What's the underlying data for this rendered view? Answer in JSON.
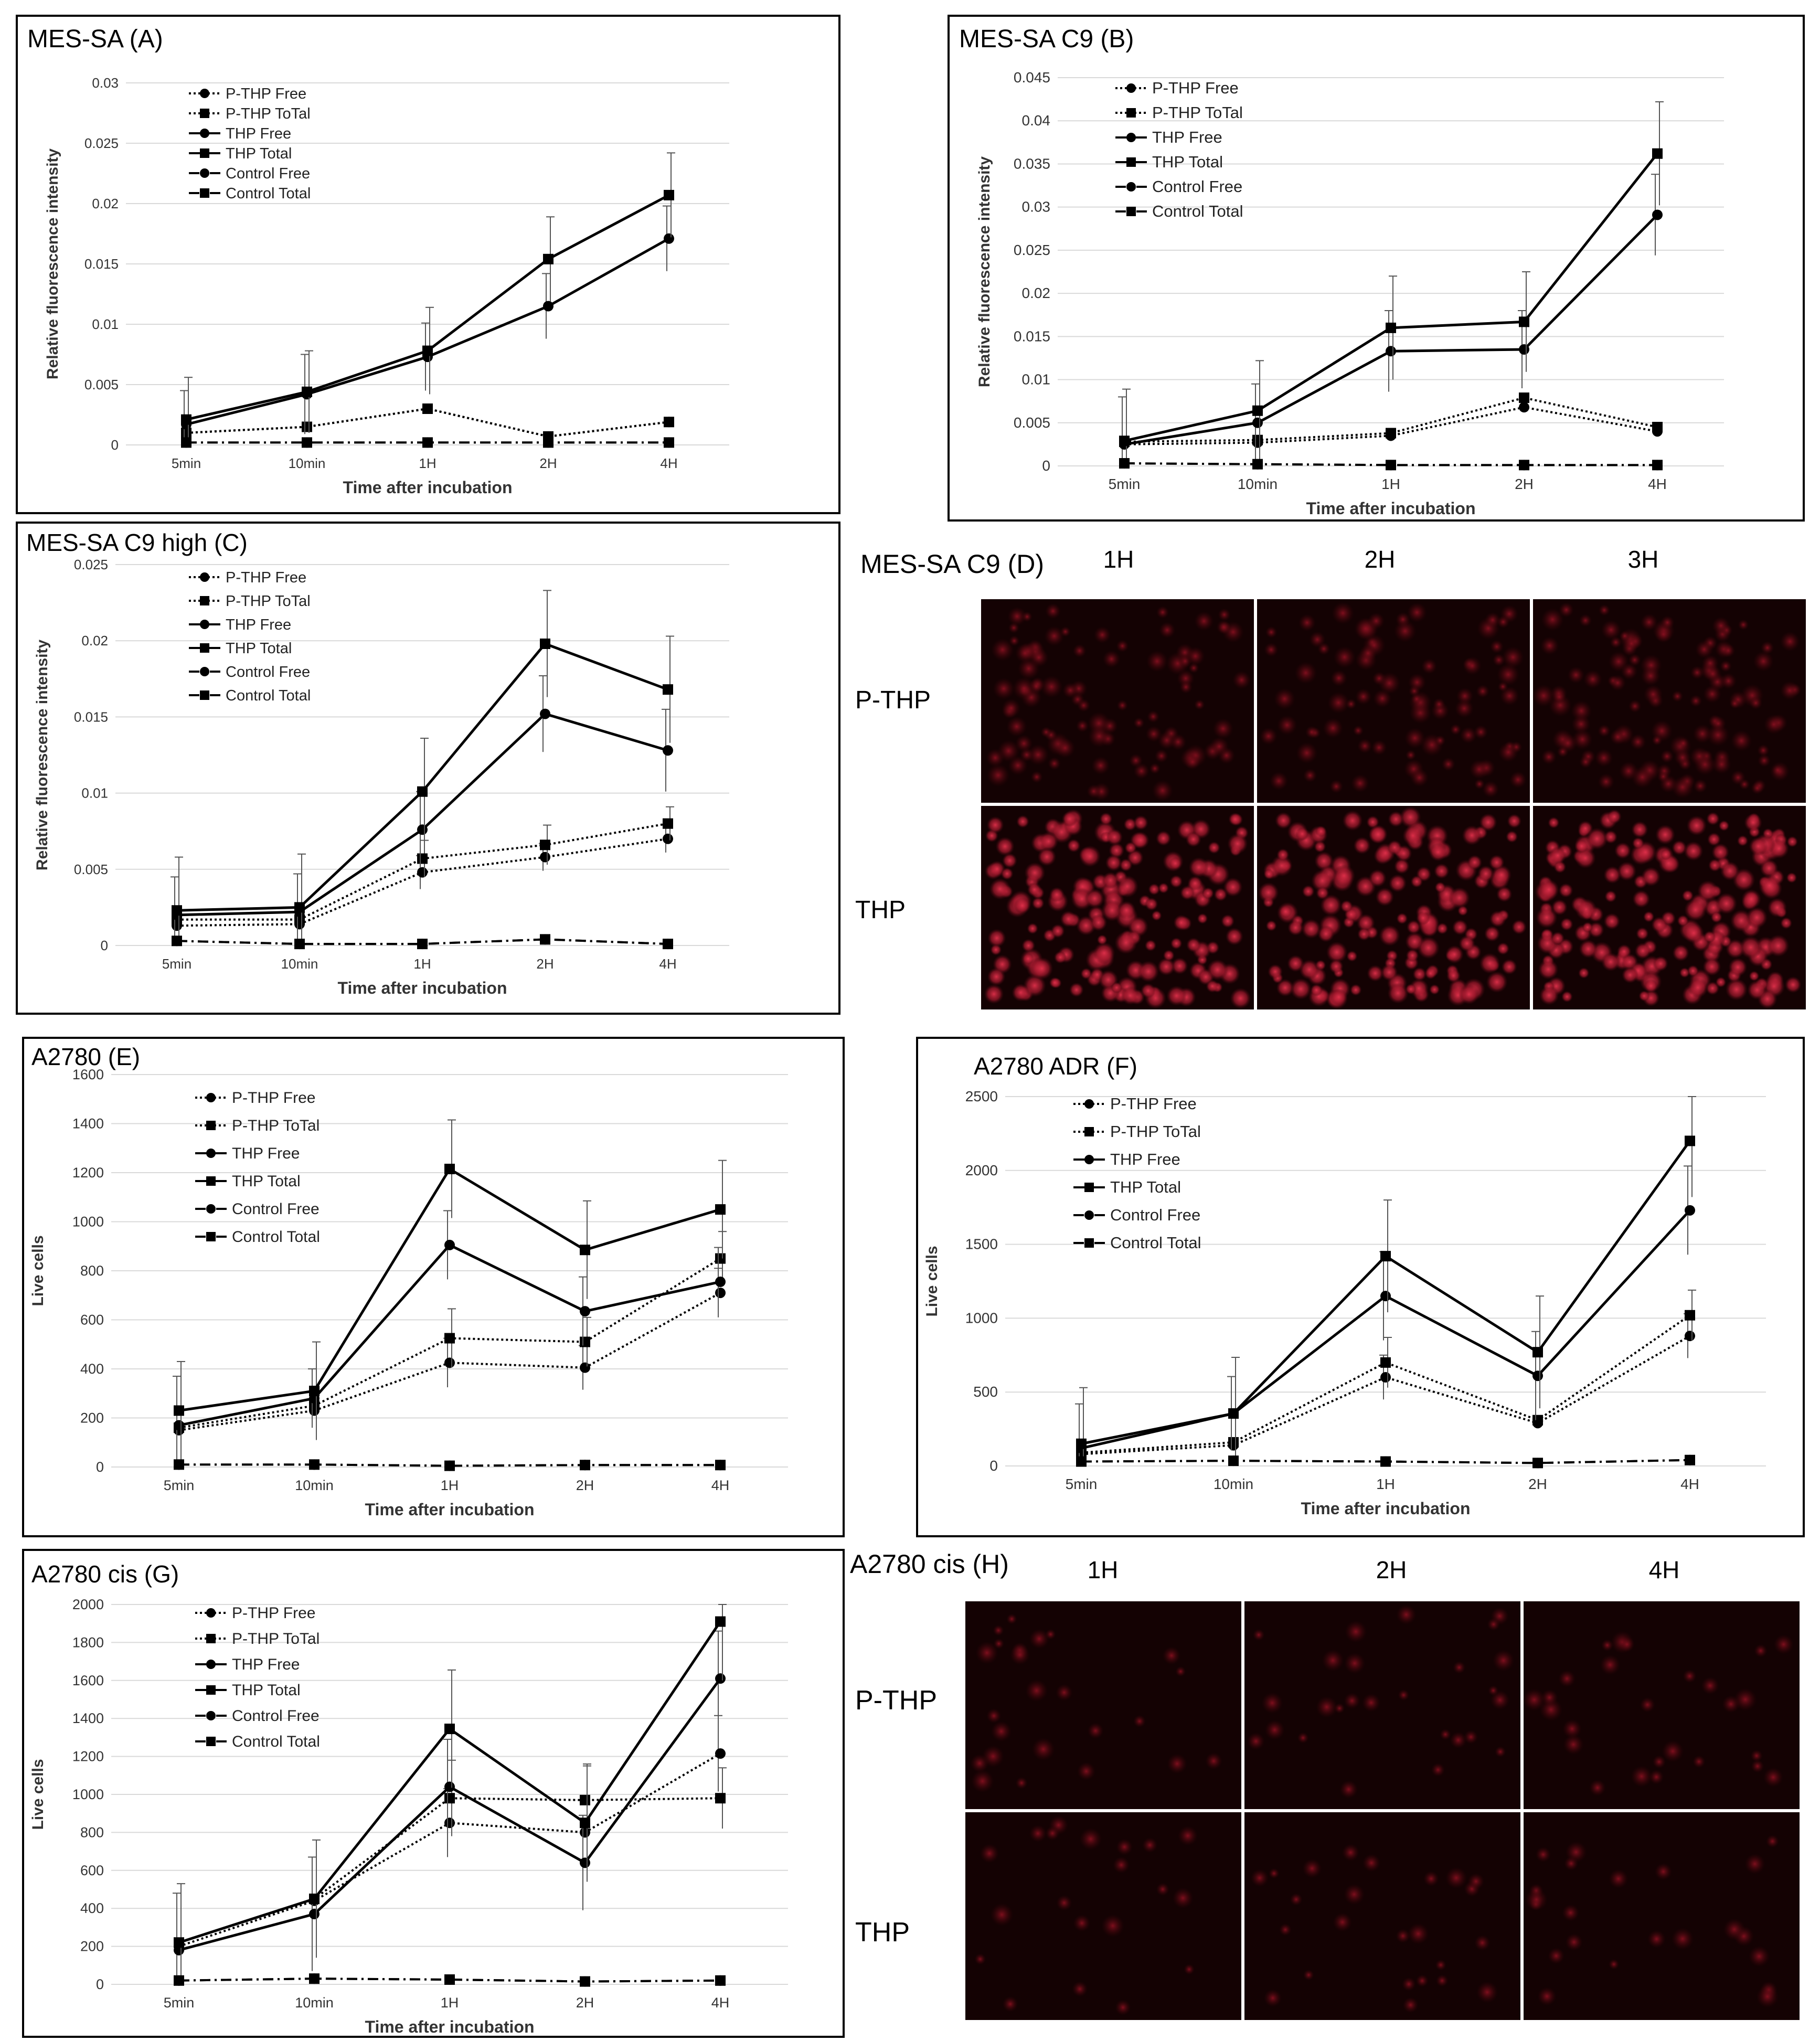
{
  "chart_data": [
    {
      "id": "A",
      "type": "line",
      "title": "MES-SA (A)",
      "categories": [
        "5min",
        "10min",
        "1H",
        "2H",
        "4H"
      ],
      "ylim": [
        0,
        0.03
      ],
      "yticks": [
        "0",
        "0.005",
        "0.01",
        "0.015",
        "0.02",
        "0.025",
        "0.03"
      ],
      "ylabel": "Relative fluorescence intensity",
      "xlabel": "Time after incubation",
      "series": [
        {
          "name": "P-THP Free",
          "values": [
            0.001,
            0.0015,
            0.003,
            0.0007,
            0.0019
          ],
          "errors": [
            0,
            0,
            0,
            0,
            0
          ],
          "style": "dotted",
          "marker": "circle"
        },
        {
          "name": "P-THP ToTal",
          "values": [
            0.001,
            0.0015,
            0.003,
            0.0007,
            0.0019
          ],
          "errors": [
            0,
            0,
            0,
            0,
            0
          ],
          "style": "dotted",
          "marker": "square"
        },
        {
          "name": "THP Free",
          "values": [
            0.0017,
            0.0042,
            0.0073,
            0.0115,
            0.0171
          ],
          "errors": [
            0.0028,
            0.0033,
            0.0028,
            0.0027,
            0.0027
          ],
          "style": "solid",
          "marker": "circle"
        },
        {
          "name": "THP Total",
          "values": [
            0.0021,
            0.0044,
            0.0078,
            0.0154,
            0.0207
          ],
          "errors": [
            0.0035,
            0.0034,
            0.0036,
            0.0035,
            0.0035
          ],
          "style": "solid",
          "marker": "square"
        },
        {
          "name": "Control Free",
          "values": [
            0.0002,
            0.0002,
            0.0002,
            0.0002,
            0.0002
          ],
          "errors": [
            0,
            0,
            0,
            0,
            0
          ],
          "style": "dashdot",
          "marker": "circle"
        },
        {
          "name": "Control Total",
          "values": [
            0.0002,
            0.0002,
            0.0002,
            0.0002,
            0.0002
          ],
          "errors": [
            0,
            0,
            0,
            0,
            0
          ],
          "style": "dashdot",
          "marker": "square"
        }
      ]
    },
    {
      "id": "B",
      "type": "line",
      "title": "MES-SA C9 (B)",
      "categories": [
        "5min",
        "10min",
        "1H",
        "2H",
        "4H"
      ],
      "ylim": [
        0,
        0.045
      ],
      "yticks": [
        "0",
        "0.005",
        "0.01",
        "0.015",
        "0.02",
        "0.025",
        "0.03",
        "0.035",
        "0.04",
        "0.045"
      ],
      "ylabel": "Relative fluorescence intensity",
      "xlabel": "Time after incubation",
      "series": [
        {
          "name": "P-THP Free",
          "values": [
            0.0025,
            0.0027,
            0.0035,
            0.0068,
            0.004
          ],
          "errors": [
            0,
            0,
            0,
            0,
            0
          ],
          "style": "dotted",
          "marker": "circle"
        },
        {
          "name": "P-THP ToTal",
          "values": [
            0.0028,
            0.003,
            0.0038,
            0.0079,
            0.0045
          ],
          "errors": [
            0,
            0,
            0,
            0,
            0
          ],
          "style": "dotted",
          "marker": "square"
        },
        {
          "name": "THP Free",
          "values": [
            0.0025,
            0.005,
            0.0133,
            0.0135,
            0.0291
          ],
          "errors": [
            0.0055,
            0.0045,
            0.0047,
            0.0045,
            0.0047
          ],
          "style": "solid",
          "marker": "circle"
        },
        {
          "name": "THP Total",
          "values": [
            0.0029,
            0.0064,
            0.016,
            0.0167,
            0.0362
          ],
          "errors": [
            0.006,
            0.0058,
            0.006,
            0.0058,
            0.006
          ],
          "style": "solid",
          "marker": "square"
        },
        {
          "name": "Control Free",
          "values": [
            0.0003,
            0.0002,
            0.0001,
            0.0001,
            0.0001
          ],
          "errors": [
            0,
            0,
            0,
            0,
            0
          ],
          "style": "dashdot",
          "marker": "circle"
        },
        {
          "name": "Control Total",
          "values": [
            0.0003,
            0.0002,
            0.0001,
            0.0001,
            0.0001
          ],
          "errors": [
            0,
            0,
            0,
            0,
            0
          ],
          "style": "dashdot",
          "marker": "square"
        }
      ]
    },
    {
      "id": "C",
      "type": "line",
      "title": "MES-SA C9 high (C)",
      "categories": [
        "5min",
        "10min",
        "1H",
        "2H",
        "4H"
      ],
      "ylim": [
        0,
        0.025
      ],
      "yticks": [
        "0",
        "0.005",
        "0.01",
        "0.015",
        "0.02",
        "0.025"
      ],
      "ylabel": "Relative fluorescence intensity",
      "xlabel": "Time after incubation",
      "series": [
        {
          "name": "P-THP Free",
          "values": [
            0.0013,
            0.0014,
            0.0048,
            0.0058,
            0.007
          ],
          "errors": [
            0,
            0,
            0.0011,
            0.0009,
            0.0009
          ],
          "style": "dotted",
          "marker": "circle"
        },
        {
          "name": "P-THP ToTal",
          "values": [
            0.0017,
            0.0017,
            0.0057,
            0.0066,
            0.008
          ],
          "errors": [
            0,
            0,
            0.0012,
            0.0013,
            0.0011
          ],
          "style": "dotted",
          "marker": "square"
        },
        {
          "name": "THP Free",
          "values": [
            0.002,
            0.0022,
            0.0076,
            0.0152,
            0.0128
          ],
          "errors": [
            0.0025,
            0.0025,
            0.0025,
            0.0025,
            0.0027
          ],
          "style": "solid",
          "marker": "circle"
        },
        {
          "name": "THP Total",
          "values": [
            0.0023,
            0.0025,
            0.0101,
            0.0198,
            0.0168
          ],
          "errors": [
            0.0035,
            0.0035,
            0.0035,
            0.0035,
            0.0035
          ],
          "style": "solid",
          "marker": "square"
        },
        {
          "name": "Control Free",
          "values": [
            0.0003,
            0.0001,
            0.0001,
            0.0004,
            0.0001
          ],
          "errors": [
            0,
            0,
            0,
            0,
            0
          ],
          "style": "dashdot",
          "marker": "circle"
        },
        {
          "name": "Control Total",
          "values": [
            0.0003,
            0.0001,
            0.0001,
            0.0004,
            0.0001
          ],
          "errors": [
            0,
            0,
            0,
            0,
            0
          ],
          "style": "dashdot",
          "marker": "square"
        }
      ]
    },
    {
      "id": "E",
      "type": "line",
      "title": "A2780 (E)",
      "categories": [
        "5min",
        "10min",
        "1H",
        "2H",
        "4H"
      ],
      "ylim": [
        0,
        1600
      ],
      "yticks": [
        "0",
        "200",
        "400",
        "600",
        "800",
        "1000",
        "1200",
        "1400",
        "1600"
      ],
      "ylabel": "Live cells",
      "xlabel": "Time after incubation",
      "series": [
        {
          "name": "P-THP Free",
          "values": [
            150,
            230,
            425,
            405,
            710
          ],
          "errors": [
            0,
            0,
            100,
            90,
            100
          ],
          "style": "dotted",
          "marker": "circle"
        },
        {
          "name": "P-THP ToTal",
          "values": [
            160,
            250,
            525,
            510,
            850
          ],
          "errors": [
            0,
            0,
            120,
            100,
            110
          ],
          "style": "dotted",
          "marker": "square"
        },
        {
          "name": "THP Free",
          "values": [
            170,
            280,
            905,
            635,
            755
          ],
          "errors": [
            200,
            120,
            140,
            140,
            140
          ],
          "style": "solid",
          "marker": "circle"
        },
        {
          "name": "THP Total",
          "values": [
            230,
            310,
            1215,
            885,
            1050
          ],
          "errors": [
            200,
            200,
            200,
            200,
            200
          ],
          "style": "solid",
          "marker": "square"
        },
        {
          "name": "Control Free",
          "values": [
            10,
            10,
            5,
            8,
            8
          ],
          "errors": [
            0,
            0,
            0,
            0,
            0
          ],
          "style": "dashdot",
          "marker": "circle"
        },
        {
          "name": "Control Total",
          "values": [
            10,
            10,
            5,
            8,
            8
          ],
          "errors": [
            0,
            0,
            0,
            0,
            0
          ],
          "style": "dashdot",
          "marker": "square"
        }
      ]
    },
    {
      "id": "F",
      "type": "line",
      "title": "A2780 ADR (F)",
      "categories": [
        "5min",
        "10min",
        "1H",
        "2H",
        "4H"
      ],
      "ylim": [
        0,
        2500
      ],
      "yticks": [
        "0",
        "500",
        "1000",
        "1500",
        "2000",
        "2500"
      ],
      "ylabel": "Live cells",
      "xlabel": "Time after incubation",
      "series": [
        {
          "name": "P-THP Free",
          "values": [
            80,
            140,
            600,
            290,
            880
          ],
          "errors": [
            0,
            0,
            150,
            0,
            150
          ],
          "style": "dotted",
          "marker": "circle"
        },
        {
          "name": "P-THP ToTal",
          "values": [
            90,
            160,
            700,
            310,
            1020
          ],
          "errors": [
            0,
            0,
            170,
            0,
            170
          ],
          "style": "dotted",
          "marker": "square"
        },
        {
          "name": "THP Free",
          "values": [
            120,
            355,
            1150,
            610,
            1730
          ],
          "errors": [
            300,
            250,
            300,
            300,
            300
          ],
          "style": "solid",
          "marker": "circle"
        },
        {
          "name": "THP Total",
          "values": [
            150,
            355,
            1420,
            770,
            2200
          ],
          "errors": [
            380,
            380,
            380,
            380,
            380
          ],
          "style": "solid",
          "marker": "square"
        },
        {
          "name": "Control Free",
          "values": [
            30,
            35,
            30,
            20,
            40
          ],
          "errors": [
            0,
            0,
            0,
            0,
            0
          ],
          "style": "dashdot",
          "marker": "circle"
        },
        {
          "name": "Control Total",
          "values": [
            30,
            35,
            30,
            20,
            40
          ],
          "errors": [
            0,
            0,
            0,
            0,
            0
          ],
          "style": "dashdot",
          "marker": "square"
        }
      ]
    },
    {
      "id": "G",
      "type": "line",
      "title": "A2780 cis (G)",
      "categories": [
        "5min",
        "10min",
        "1H",
        "2H",
        "4H"
      ],
      "ylim": [
        0,
        2000
      ],
      "yticks": [
        "0",
        "200",
        "400",
        "600",
        "800",
        "1000",
        "1200",
        "1400",
        "1600",
        "1800",
        "2000"
      ],
      "ylabel": "Live cells",
      "xlabel": "Time after incubation",
      "series": [
        {
          "name": "P-THP Free",
          "values": [
            200,
            440,
            850,
            800,
            1215
          ],
          "errors": [
            0,
            0,
            180,
            0,
            200
          ],
          "style": "dotted",
          "marker": "circle"
        },
        {
          "name": "P-THP ToTal",
          "values": [
            220,
            450,
            980,
            970,
            980
          ],
          "errors": [
            0,
            0,
            200,
            180,
            160
          ],
          "style": "dotted",
          "marker": "square"
        },
        {
          "name": "THP Free",
          "values": [
            180,
            370,
            1040,
            640,
            1610
          ],
          "errors": [
            300,
            300,
            250,
            250,
            250
          ],
          "style": "solid",
          "marker": "circle"
        },
        {
          "name": "THP Total",
          "values": [
            220,
            450,
            1345,
            850,
            1910
          ],
          "errors": [
            310,
            310,
            310,
            310,
            310
          ],
          "style": "solid",
          "marker": "square"
        },
        {
          "name": "Control Free",
          "values": [
            20,
            30,
            25,
            15,
            20
          ],
          "errors": [
            0,
            0,
            0,
            0,
            0
          ],
          "style": "dashdot",
          "marker": "circle"
        },
        {
          "name": "Control Total",
          "values": [
            20,
            30,
            25,
            15,
            20
          ],
          "errors": [
            0,
            0,
            0,
            0,
            0
          ],
          "style": "dashdot",
          "marker": "square"
        }
      ]
    }
  ],
  "image_panels": [
    {
      "id": "D",
      "title": "MES-SA C9 (D)",
      "columns": [
        "1H",
        "2H",
        "3H"
      ],
      "rows": [
        "P-THP",
        "THP"
      ]
    },
    {
      "id": "H",
      "title": "A2780 cis (H)",
      "columns": [
        "1H",
        "2H",
        "4H"
      ],
      "rows": [
        "P-THP",
        "THP"
      ]
    }
  ]
}
